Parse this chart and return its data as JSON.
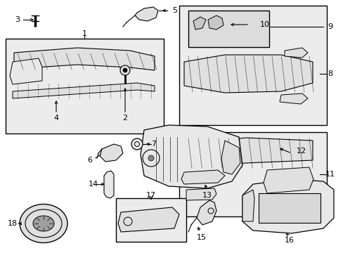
{
  "background_color": "#ffffff",
  "fig_width": 4.89,
  "fig_height": 3.6,
  "dpi": 100,
  "label_fontsize": 8,
  "line_color": "#000000"
}
